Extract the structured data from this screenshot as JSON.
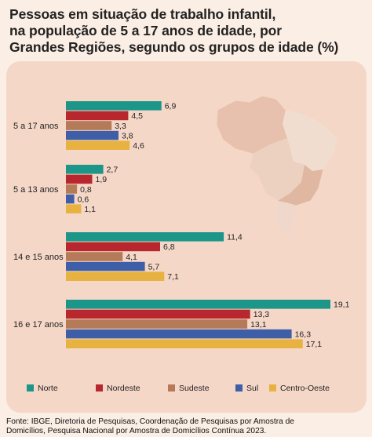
{
  "title_lines": [
    "Pessoas em situação de trabalho infantil,",
    "na população de 5 a 17 anos de idade, por",
    "Grandes Regiões, segundo os grupos de idade (%)"
  ],
  "source_lines": [
    "Fonte: IBGE, Diretoria de Pesquisas, Coordenação de Pesquisas por Amostra de",
    "Domicílios, Pesquisa Nacional por Amostra de Domicílios Contínua 2023."
  ],
  "map_icon": "brazil-map-icon",
  "chart_data": {
    "type": "bar",
    "orientation": "horizontal",
    "categories": [
      "5 a 17 anos",
      "5 a 13 anos",
      "14 e 15 anos",
      "16 e 17 anos"
    ],
    "series": [
      {
        "name": "Norte",
        "color": "#1b9688",
        "values": [
          6.9,
          2.7,
          11.4,
          19.1
        ],
        "labels": [
          "6,9",
          "2,7",
          "11,4",
          "19,1"
        ]
      },
      {
        "name": "Nordeste",
        "color": "#b8272d",
        "values": [
          4.5,
          1.9,
          6.8,
          13.3
        ],
        "labels": [
          "4,5",
          "1,9",
          "6,8",
          "13,3"
        ]
      },
      {
        "name": "Sudeste",
        "color": "#b57b58",
        "values": [
          3.3,
          0.8,
          4.1,
          13.1
        ],
        "labels": [
          "3,3",
          "0,8",
          "4,1",
          "13,1"
        ]
      },
      {
        "name": "Sul",
        "color": "#3f5ea8",
        "values": [
          3.8,
          0.6,
          5.7,
          16.3
        ],
        "labels": [
          "3,8",
          "0,6",
          "5,7",
          "16,3"
        ]
      },
      {
        "name": "Centro-Oeste",
        "color": "#e7b23f",
        "values": [
          4.6,
          1.1,
          7.1,
          17.1
        ],
        "labels": [
          "4,6",
          "1,1",
          "7,1",
          "17,1"
        ]
      }
    ],
    "grid": false,
    "data_labels": true,
    "legend_position": "bottom"
  }
}
